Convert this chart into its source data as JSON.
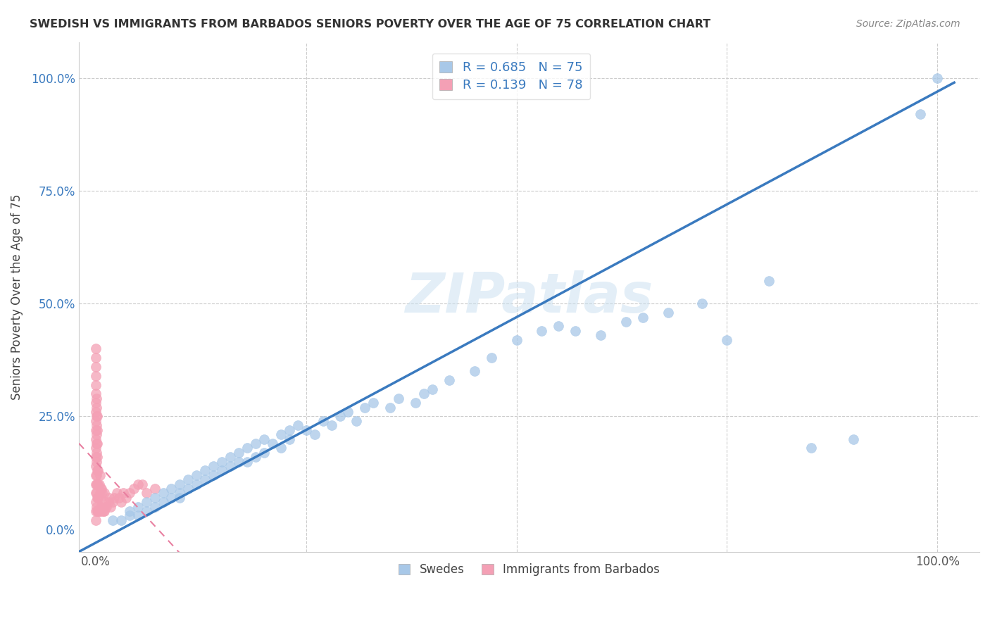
{
  "title": "SWEDISH VS IMMIGRANTS FROM BARBADOS SENIORS POVERTY OVER THE AGE OF 75 CORRELATION CHART",
  "source": "Source: ZipAtlas.com",
  "ylabel": "Seniors Poverty Over the Age of 75",
  "xlim": [
    -0.02,
    1.05
  ],
  "ylim": [
    -0.05,
    1.08
  ],
  "swedes_color": "#a8c8e8",
  "barbados_color": "#f4a0b5",
  "trendline_swedes_color": "#3a7abf",
  "trendline_barbados_color": "#e87fa0",
  "watermark": "ZIPatlas",
  "R_swedes": 0.685,
  "N_swedes": 75,
  "R_barbados": 0.139,
  "N_barbados": 78,
  "legend_label_swedes": "Swedes",
  "legend_label_barbados": "Immigrants from Barbados",
  "swedes_x": [
    0.02,
    0.03,
    0.04,
    0.04,
    0.05,
    0.05,
    0.06,
    0.06,
    0.07,
    0.07,
    0.08,
    0.08,
    0.09,
    0.09,
    0.1,
    0.1,
    0.1,
    0.11,
    0.11,
    0.12,
    0.12,
    0.13,
    0.13,
    0.14,
    0.14,
    0.15,
    0.15,
    0.16,
    0.16,
    0.17,
    0.17,
    0.18,
    0.18,
    0.19,
    0.19,
    0.2,
    0.2,
    0.21,
    0.22,
    0.22,
    0.23,
    0.23,
    0.24,
    0.25,
    0.26,
    0.27,
    0.28,
    0.29,
    0.3,
    0.31,
    0.32,
    0.33,
    0.35,
    0.36,
    0.38,
    0.39,
    0.4,
    0.42,
    0.45,
    0.47,
    0.5,
    0.53,
    0.55,
    0.57,
    0.6,
    0.63,
    0.65,
    0.68,
    0.72,
    0.75,
    0.8,
    0.85,
    0.9,
    0.98,
    1.0
  ],
  "swedes_y": [
    0.02,
    0.02,
    0.03,
    0.04,
    0.03,
    0.05,
    0.04,
    0.06,
    0.05,
    0.07,
    0.06,
    0.08,
    0.07,
    0.09,
    0.07,
    0.08,
    0.1,
    0.09,
    0.11,
    0.1,
    0.12,
    0.11,
    0.13,
    0.12,
    0.14,
    0.13,
    0.15,
    0.14,
    0.16,
    0.15,
    0.17,
    0.15,
    0.18,
    0.16,
    0.19,
    0.17,
    0.2,
    0.19,
    0.18,
    0.21,
    0.2,
    0.22,
    0.23,
    0.22,
    0.21,
    0.24,
    0.23,
    0.25,
    0.26,
    0.24,
    0.27,
    0.28,
    0.27,
    0.29,
    0.28,
    0.3,
    0.31,
    0.33,
    0.35,
    0.38,
    0.42,
    0.44,
    0.45,
    0.44,
    0.43,
    0.46,
    0.47,
    0.48,
    0.5,
    0.42,
    0.55,
    0.18,
    0.2,
    0.92,
    1.0
  ],
  "barbados_x": [
    0.0,
    0.0,
    0.0,
    0.0,
    0.0,
    0.0,
    0.0,
    0.0,
    0.0,
    0.0,
    0.0,
    0.0,
    0.0,
    0.0,
    0.0,
    0.0,
    0.0,
    0.0,
    0.0,
    0.0,
    0.001,
    0.001,
    0.001,
    0.001,
    0.001,
    0.001,
    0.001,
    0.001,
    0.001,
    0.001,
    0.001,
    0.001,
    0.002,
    0.002,
    0.002,
    0.002,
    0.002,
    0.002,
    0.002,
    0.002,
    0.003,
    0.003,
    0.003,
    0.003,
    0.004,
    0.004,
    0.004,
    0.005,
    0.005,
    0.005,
    0.006,
    0.006,
    0.007,
    0.007,
    0.008,
    0.008,
    0.009,
    0.01,
    0.01,
    0.011,
    0.012,
    0.013,
    0.015,
    0.016,
    0.018,
    0.02,
    0.022,
    0.025,
    0.028,
    0.03,
    0.033,
    0.036,
    0.04,
    0.045,
    0.05,
    0.055,
    0.06,
    0.07
  ],
  "barbados_y": [
    0.02,
    0.04,
    0.06,
    0.08,
    0.1,
    0.12,
    0.14,
    0.16,
    0.18,
    0.2,
    0.22,
    0.24,
    0.26,
    0.28,
    0.3,
    0.32,
    0.34,
    0.36,
    0.38,
    0.4,
    0.05,
    0.08,
    0.1,
    0.12,
    0.15,
    0.17,
    0.19,
    0.21,
    0.23,
    0.25,
    0.27,
    0.29,
    0.04,
    0.07,
    0.1,
    0.13,
    0.16,
    0.19,
    0.22,
    0.25,
    0.04,
    0.07,
    0.1,
    0.13,
    0.04,
    0.07,
    0.1,
    0.04,
    0.08,
    0.12,
    0.05,
    0.09,
    0.05,
    0.09,
    0.04,
    0.08,
    0.04,
    0.04,
    0.08,
    0.05,
    0.06,
    0.05,
    0.06,
    0.07,
    0.05,
    0.06,
    0.07,
    0.08,
    0.07,
    0.06,
    0.08,
    0.07,
    0.08,
    0.09,
    0.1,
    0.1,
    0.08,
    0.09
  ]
}
